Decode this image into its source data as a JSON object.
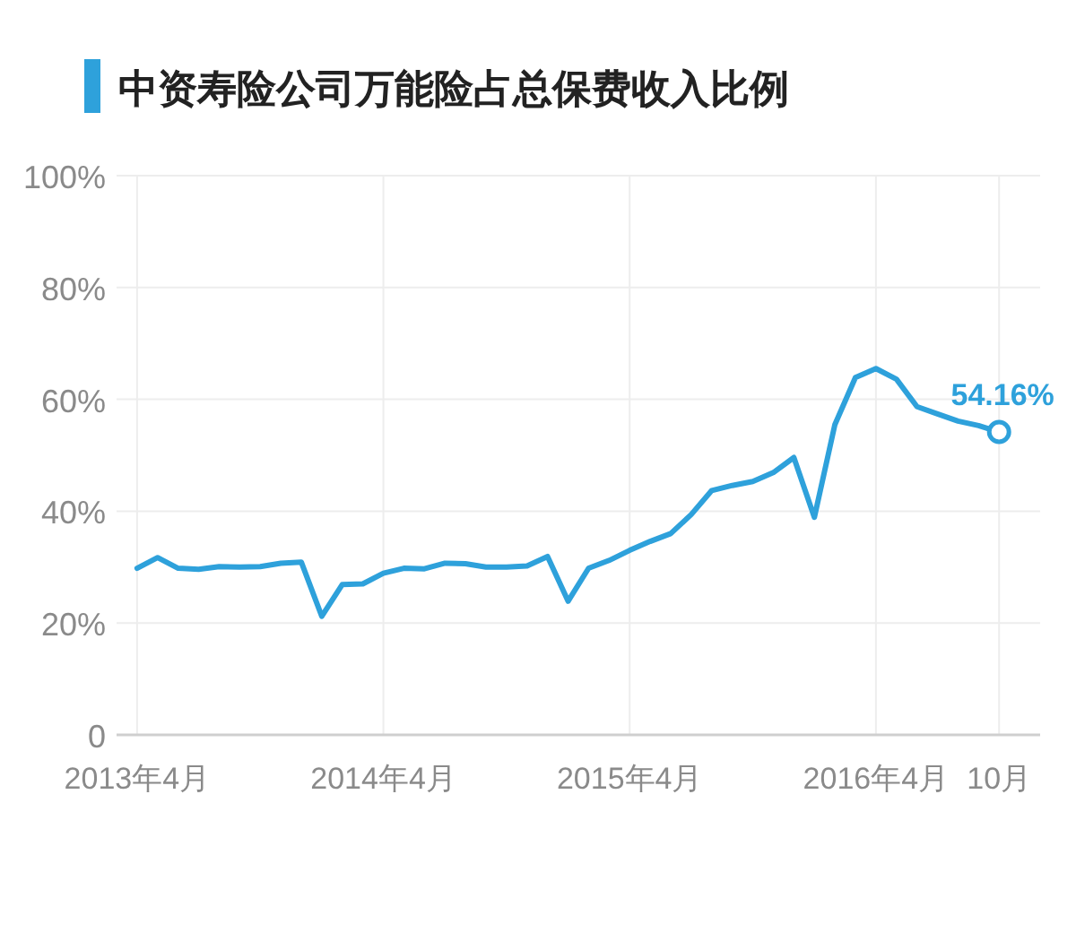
{
  "chart_data": {
    "type": "line",
    "title": "中资寿险公司万能险占总保费收入比例",
    "x": [
      "2013-04",
      "2013-05",
      "2013-06",
      "2013-07",
      "2013-08",
      "2013-09",
      "2013-10",
      "2013-11",
      "2013-12",
      "2014-01",
      "2014-02",
      "2014-03",
      "2014-04",
      "2014-05",
      "2014-06",
      "2014-07",
      "2014-08",
      "2014-09",
      "2014-10",
      "2014-11",
      "2014-12",
      "2015-01",
      "2015-02",
      "2015-03",
      "2015-04",
      "2015-05",
      "2015-06",
      "2015-07",
      "2015-08",
      "2015-09",
      "2015-10",
      "2015-11",
      "2015-12",
      "2016-01",
      "2016-02",
      "2016-03",
      "2016-04",
      "2016-05",
      "2016-06",
      "2016-07",
      "2016-08",
      "2016-09",
      "2016-10"
    ],
    "series": [
      {
        "color": "#2ea1db",
        "values": [
          29.8,
          31.7,
          29.8,
          29.6,
          30.1,
          30.0,
          30.1,
          30.7,
          30.9,
          21.2,
          26.9,
          27.0,
          28.9,
          29.8,
          29.7,
          30.7,
          30.6,
          30.0,
          30.0,
          30.2,
          31.9,
          23.9,
          29.8,
          31.2,
          33.0,
          34.6,
          36.0,
          39.4,
          43.7,
          44.6,
          45.3,
          46.9,
          49.6,
          38.9,
          55.5,
          63.9,
          65.5,
          63.6,
          58.7,
          57.4,
          56.1,
          55.3,
          54.16
        ]
      }
    ],
    "xlim": [
      "2013-03",
      "2016-12"
    ],
    "xticks": [
      {
        "value": "2013-04",
        "label": "2013年4月"
      },
      {
        "value": "2014-04",
        "label": "2014年4月"
      },
      {
        "value": "2015-04",
        "label": "2015年4月"
      },
      {
        "value": "2016-04",
        "label": "2016年4月"
      },
      {
        "value": "2016-10",
        "label": "10月"
      }
    ],
    "ylim": [
      0,
      100
    ],
    "yticks": [
      0,
      {
        "value": 20,
        "label": "20%"
      },
      {
        "value": 40,
        "label": "40%"
      },
      {
        "value": 60,
        "label": "60%"
      },
      {
        "value": 80,
        "label": "80%"
      },
      {
        "value": 100,
        "label": "100%"
      }
    ],
    "grid": true,
    "marker": "none",
    "line_style": "solid",
    "annotations": [
      {
        "text": "54.16%",
        "x": "2016-10",
        "y": 54.16
      }
    ]
  }
}
